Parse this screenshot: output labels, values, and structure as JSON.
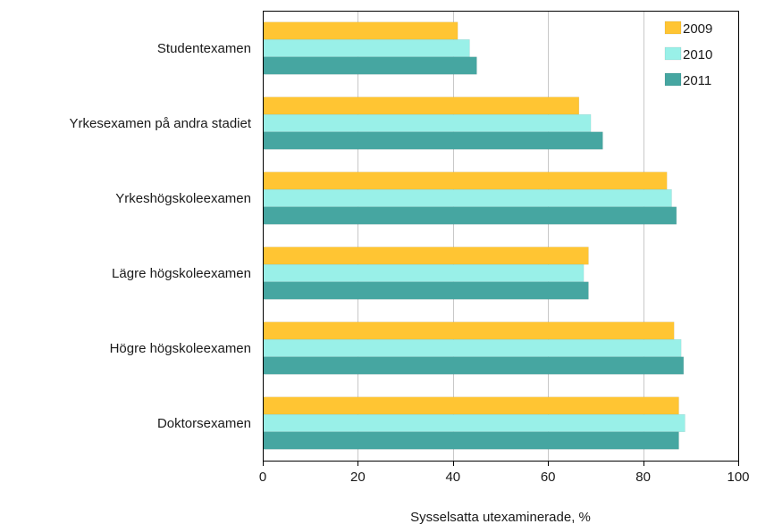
{
  "chart_data": {
    "type": "bar",
    "orientation": "horizontal",
    "categories": [
      "Studentexamen",
      "Yrkesexamen på andra stadiet",
      "Yrkeshögskoleexamen",
      "Lägre högskoleexamen",
      "Högre högskoleexamen",
      "Doktorsexamen"
    ],
    "series": [
      {
        "name": "2009",
        "color": "#ffc533",
        "values": [
          41,
          66.5,
          85,
          68.5,
          86.5,
          87.5
        ]
      },
      {
        "name": "2010",
        "color": "#99f0e8",
        "values": [
          43.5,
          69,
          86,
          67.5,
          88,
          88.8
        ]
      },
      {
        "name": "2011",
        "color": "#46a6a1",
        "values": [
          45,
          71.5,
          87,
          68.5,
          88.5,
          87.5
        ]
      }
    ],
    "xlabel": "Sysselsatta utexaminerade, %",
    "xlim": [
      0,
      100
    ],
    "xticks": [
      0,
      20,
      40,
      60,
      80,
      100
    ],
    "grid": true,
    "legend": "top-right"
  }
}
